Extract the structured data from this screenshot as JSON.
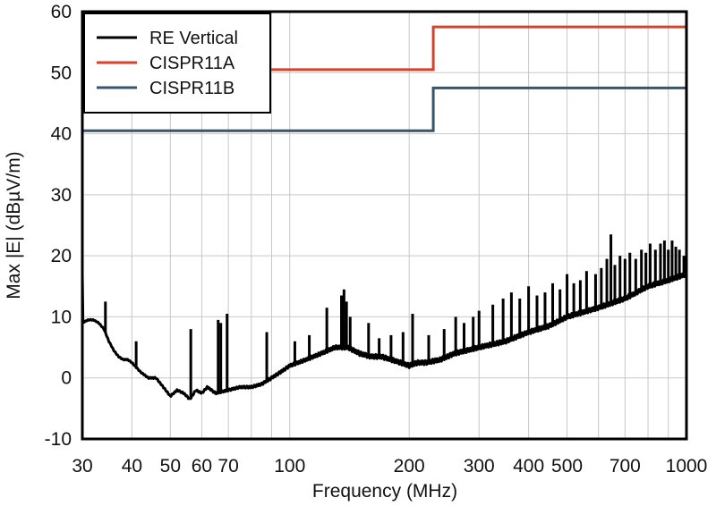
{
  "chart_data": {
    "type": "line",
    "title": "",
    "xlabel": "Frequency (MHz)",
    "ylabel": "Max |E| (dBµV/m)",
    "x_scale": "log",
    "xlim": [
      30,
      1000
    ],
    "ylim": [
      -10,
      60
    ],
    "x_ticks": [
      30,
      40,
      50,
      60,
      70,
      100,
      200,
      300,
      400,
      500,
      700,
      1000
    ],
    "x_tick_labels": [
      "30",
      "40",
      "50",
      "60",
      "70",
      "100",
      "200",
      "300",
      "400",
      "500",
      "700",
      "1000"
    ],
    "x_grid": [
      30,
      40,
      50,
      60,
      70,
      80,
      90,
      100,
      200,
      300,
      400,
      500,
      600,
      700,
      800,
      900,
      1000
    ],
    "y_ticks": [
      -10,
      0,
      10,
      20,
      30,
      40,
      50,
      60
    ],
    "y_tick_labels": [
      "-10",
      "0",
      "10",
      "20",
      "30",
      "40",
      "50",
      "60"
    ],
    "grid": true,
    "legend_position": "top-left",
    "series": [
      {
        "name": "RE Vertical",
        "color": "#000000",
        "baseline": [
          [
            30,
            9
          ],
          [
            31,
            9.5
          ],
          [
            32,
            9.5
          ],
          [
            33,
            9
          ],
          [
            34,
            8
          ],
          [
            35,
            6
          ],
          [
            36,
            4.5
          ],
          [
            37,
            3.5
          ],
          [
            38,
            3
          ],
          [
            39,
            3
          ],
          [
            40,
            2.5
          ],
          [
            42,
            1
          ],
          [
            44,
            0
          ],
          [
            46,
            0
          ],
          [
            48,
            -1.5
          ],
          [
            50,
            -3
          ],
          [
            52,
            -2
          ],
          [
            54,
            -2.5
          ],
          [
            56,
            -3.5
          ],
          [
            58,
            -2
          ],
          [
            60,
            -2.5
          ],
          [
            62,
            -1.5
          ],
          [
            65,
            -2.5
          ],
          [
            70,
            -2
          ],
          [
            75,
            -1.5
          ],
          [
            80,
            -1.5
          ],
          [
            85,
            -1
          ],
          [
            90,
            0
          ],
          [
            95,
            1
          ],
          [
            100,
            2
          ],
          [
            110,
            3
          ],
          [
            120,
            4
          ],
          [
            130,
            5
          ],
          [
            140,
            5
          ],
          [
            150,
            4
          ],
          [
            160,
            3.5
          ],
          [
            170,
            3.5
          ],
          [
            180,
            3
          ],
          [
            190,
            2.5
          ],
          [
            200,
            2
          ],
          [
            210,
            2.5
          ],
          [
            220,
            2.5
          ],
          [
            240,
            3
          ],
          [
            260,
            4
          ],
          [
            300,
            5
          ],
          [
            350,
            6
          ],
          [
            400,
            7.5
          ],
          [
            450,
            8.5
          ],
          [
            500,
            10
          ],
          [
            600,
            11.5
          ],
          [
            700,
            13
          ],
          [
            800,
            15
          ],
          [
            900,
            16
          ],
          [
            1000,
            17
          ]
        ],
        "spikes": [
          [
            34.3,
            12.5
          ],
          [
            41,
            6
          ],
          [
            56.3,
            8
          ],
          [
            66,
            9.5
          ],
          [
            67,
            9
          ],
          [
            69.5,
            10.5
          ],
          [
            87.5,
            7.5
          ],
          [
            103,
            6
          ],
          [
            112,
            7
          ],
          [
            124,
            11.5
          ],
          [
            135,
            13.5
          ],
          [
            137,
            14.5
          ],
          [
            139,
            12.5
          ],
          [
            142,
            10
          ],
          [
            158,
            9
          ],
          [
            168,
            6.5
          ],
          [
            180,
            7
          ],
          [
            193,
            7.5
          ],
          [
            204,
            10.5
          ],
          [
            224,
            7
          ],
          [
            245,
            8
          ],
          [
            262,
            10
          ],
          [
            275,
            9
          ],
          [
            290,
            10
          ],
          [
            300,
            11
          ],
          [
            325,
            12
          ],
          [
            345,
            13
          ],
          [
            362,
            14
          ],
          [
            380,
            13
          ],
          [
            400,
            15
          ],
          [
            420,
            13.5
          ],
          [
            440,
            14
          ],
          [
            460,
            15.5
          ],
          [
            480,
            14.5
          ],
          [
            500,
            17
          ],
          [
            520,
            15.5
          ],
          [
            540,
            16
          ],
          [
            560,
            17.5
          ],
          [
            590,
            17
          ],
          [
            610,
            18
          ],
          [
            630,
            19.5
          ],
          [
            645,
            23.5
          ],
          [
            660,
            18.5
          ],
          [
            680,
            20
          ],
          [
            700,
            19.5
          ],
          [
            720,
            20.5
          ],
          [
            745,
            19.5
          ],
          [
            770,
            21
          ],
          [
            790,
            20.5
          ],
          [
            810,
            22
          ],
          [
            835,
            21
          ],
          [
            860,
            22
          ],
          [
            880,
            22.5
          ],
          [
            900,
            21
          ],
          [
            920,
            22.5
          ],
          [
            940,
            21.5
          ],
          [
            960,
            21
          ],
          [
            985,
            20
          ],
          [
            1000,
            19.5
          ]
        ]
      },
      {
        "name": "CISPR11A",
        "color": "#d9412b",
        "steps": [
          [
            30,
            50.5
          ],
          [
            230,
            50.5
          ],
          [
            230,
            57.5
          ],
          [
            1000,
            57.5
          ]
        ]
      },
      {
        "name": "CISPR11B",
        "color": "#35566e",
        "steps": [
          [
            30,
            40.5
          ],
          [
            230,
            40.5
          ],
          [
            230,
            47.5
          ],
          [
            1000,
            47.5
          ]
        ]
      }
    ]
  }
}
